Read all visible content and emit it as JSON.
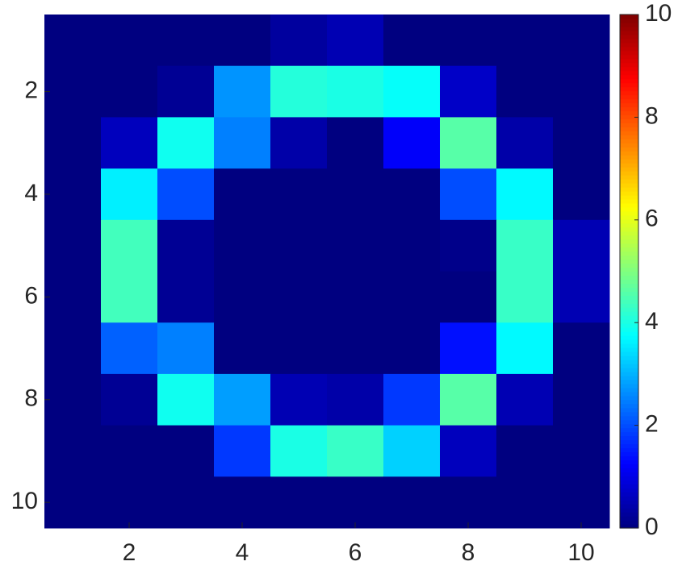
{
  "chart_data": {
    "type": "heatmap",
    "colormap": "jet",
    "z": [
      [
        0,
        0,
        0,
        0,
        0.3,
        0.5,
        0,
        0,
        0,
        0
      ],
      [
        0,
        0,
        0.2,
        2.7,
        4.1,
        4.0,
        3.8,
        0.7,
        0,
        0
      ],
      [
        0,
        0.6,
        3.9,
        2.5,
        0.4,
        0,
        1.2,
        4.6,
        0.4,
        0
      ],
      [
        0,
        3.6,
        2.0,
        0,
        0,
        0,
        0,
        2.0,
        3.7,
        0
      ],
      [
        0,
        4.4,
        0.2,
        0,
        0,
        0,
        0,
        0.1,
        4.3,
        0.5
      ],
      [
        0,
        4.4,
        0.2,
        0,
        0,
        0,
        0,
        0,
        4.3,
        0.5
      ],
      [
        0,
        2.2,
        2.5,
        0,
        0,
        0,
        0,
        1.4,
        3.7,
        0
      ],
      [
        0,
        0.2,
        3.9,
        2.8,
        0.5,
        0.4,
        1.8,
        4.6,
        0.5,
        0
      ],
      [
        0,
        0,
        0,
        1.8,
        4.0,
        4.3,
        3.3,
        0.6,
        0,
        0
      ],
      [
        0,
        0,
        0,
        0,
        0,
        0,
        0,
        0,
        0,
        0
      ]
    ],
    "xlim": [
      0.5,
      10.5
    ],
    "ylim": [
      0.5,
      10.5
    ],
    "y_reversed": true,
    "xticks": [
      2,
      4,
      6,
      8,
      10
    ],
    "yticks": [
      2,
      4,
      6,
      8,
      10
    ],
    "clim": [
      0,
      10
    ],
    "cticks": [
      0,
      2,
      4,
      6,
      8,
      10
    ]
  }
}
